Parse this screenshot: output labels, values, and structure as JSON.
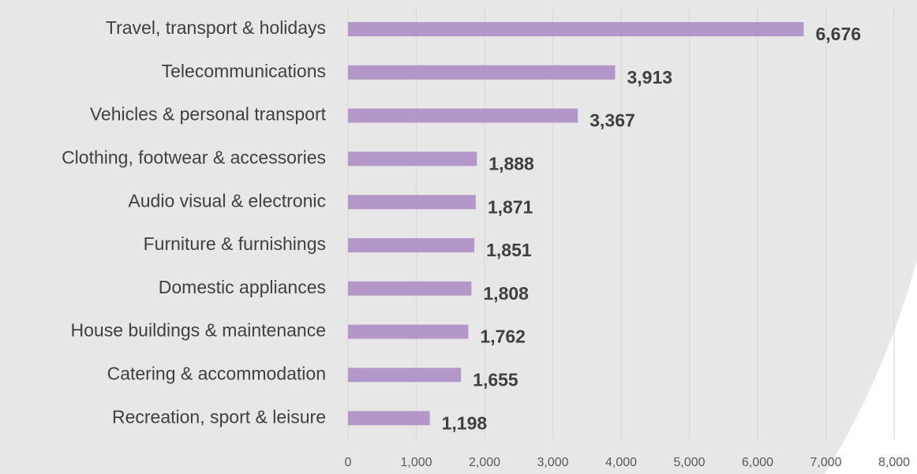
{
  "chart_data": {
    "type": "bar",
    "orientation": "horizontal",
    "categories": [
      "Travel, transport & holidays",
      "Telecommunications",
      "Vehicles & personal transport",
      "Clothing, footwear & accessories",
      "Audio visual & electronic",
      "Furniture & furnishings",
      "Domestic appliances",
      "House buildings & maintenance",
      "Catering & accommodation",
      "Recreation, sport & leisure"
    ],
    "values": [
      6676,
      3913,
      3367,
      1888,
      1871,
      1851,
      1808,
      1762,
      1655,
      1198
    ],
    "value_labels": [
      "6,676",
      "3,913",
      "3,367",
      "1,888",
      "1,871",
      "1,851",
      "1,808",
      "1,762",
      "1,655",
      "1,198"
    ],
    "color": "#b497c9",
    "xlim": [
      0,
      8000
    ],
    "xticks": [
      0,
      {
        "value": 1000,
        "label": "1,000"
      },
      {
        "value": 2000,
        "label": "2,000"
      },
      {
        "value": 3000,
        "label": "3,000"
      },
      {
        "value": 4000,
        "label": "4,000"
      },
      {
        "value": 5000,
        "label": "5,000"
      },
      {
        "value": 6000,
        "label": "6,000"
      },
      {
        "value": 7000,
        "label": "7,000"
      },
      {
        "value": 8000,
        "label": "8,000"
      }
    ],
    "grid": true
  }
}
